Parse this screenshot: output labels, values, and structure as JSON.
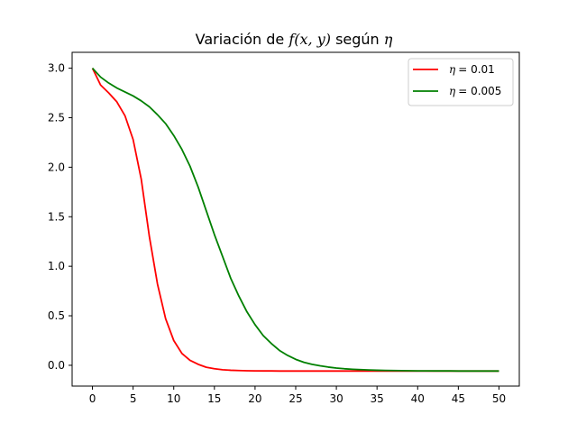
{
  "chart_data": {
    "type": "line",
    "title": {
      "prefix": "Variación de ",
      "math1": "f(x, y)",
      "middle": " según ",
      "math2": "η"
    },
    "xlabel": "",
    "ylabel": "",
    "xlim": [
      -2.5,
      52.5
    ],
    "ylim": [
      -0.21,
      3.16
    ],
    "xticks": [
      0,
      5,
      10,
      15,
      20,
      25,
      30,
      35,
      40,
      45,
      50
    ],
    "xtick_labels": [
      "0",
      "5",
      "10",
      "15",
      "20",
      "25",
      "30",
      "35",
      "40",
      "45",
      "50"
    ],
    "yticks": [
      0.0,
      0.5,
      1.0,
      1.5,
      2.0,
      2.5,
      3.0
    ],
    "ytick_labels": [
      "0.0",
      "0.5",
      "1.0",
      "1.5",
      "2.0",
      "2.5",
      "3.0"
    ],
    "grid": false,
    "legend_position": "top-right",
    "x": [
      0,
      1,
      2,
      3,
      4,
      5,
      6,
      7,
      8,
      9,
      10,
      11,
      12,
      13,
      14,
      15,
      16,
      17,
      18,
      19,
      20,
      21,
      22,
      23,
      24,
      25,
      26,
      27,
      28,
      29,
      30,
      31,
      32,
      33,
      34,
      35,
      36,
      37,
      38,
      39,
      40,
      41,
      42,
      43,
      44,
      45,
      46,
      47,
      48,
      49,
      50
    ],
    "series": [
      {
        "name": "η = 0.01",
        "label_math": "η",
        "label_value": "= 0.01",
        "color": "#ff0000",
        "values": [
          3.0,
          2.83,
          2.75,
          2.66,
          2.52,
          2.28,
          1.88,
          1.3,
          0.82,
          0.47,
          0.25,
          0.12,
          0.05,
          0.01,
          -0.02,
          -0.035,
          -0.045,
          -0.05,
          -0.053,
          -0.055,
          -0.056,
          -0.057,
          -0.057,
          -0.058,
          -0.058,
          -0.058,
          -0.058,
          -0.058,
          -0.058,
          -0.058,
          -0.058,
          -0.058,
          -0.058,
          -0.058,
          -0.058,
          -0.058,
          -0.058,
          -0.058,
          -0.058,
          -0.058,
          -0.058,
          -0.058,
          -0.058,
          -0.058,
          -0.058,
          -0.058,
          -0.058,
          -0.058,
          -0.058,
          -0.058,
          -0.058
        ]
      },
      {
        "name": "η = 0.005",
        "label_math": "η",
        "label_value": "= 0.005",
        "color": "#008000",
        "values": [
          3.0,
          2.91,
          2.85,
          2.8,
          2.76,
          2.72,
          2.67,
          2.61,
          2.53,
          2.44,
          2.32,
          2.18,
          2.01,
          1.8,
          1.56,
          1.32,
          1.1,
          0.88,
          0.7,
          0.54,
          0.41,
          0.3,
          0.22,
          0.15,
          0.1,
          0.06,
          0.03,
          0.01,
          -0.005,
          -0.018,
          -0.028,
          -0.035,
          -0.04,
          -0.044,
          -0.047,
          -0.05,
          -0.052,
          -0.053,
          -0.054,
          -0.055,
          -0.056,
          -0.056,
          -0.057,
          -0.057,
          -0.057,
          -0.058,
          -0.058,
          -0.058,
          -0.058,
          -0.058,
          -0.058
        ]
      }
    ]
  }
}
